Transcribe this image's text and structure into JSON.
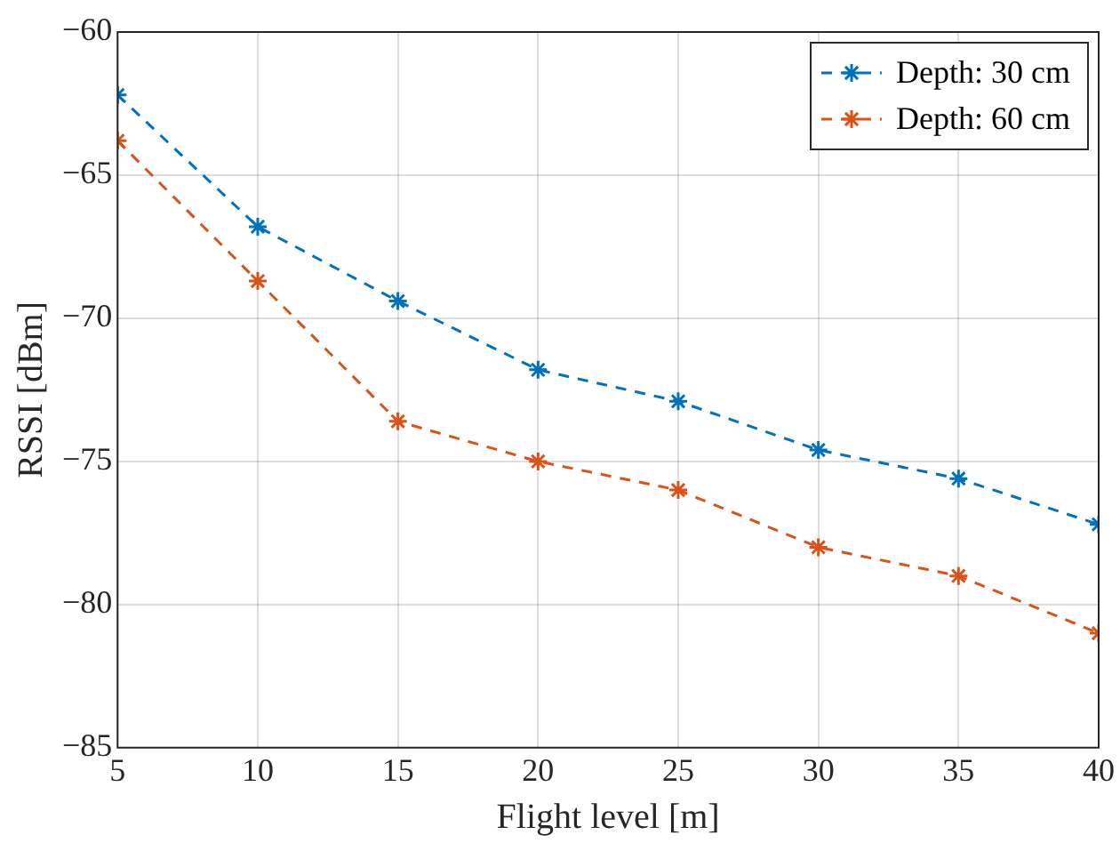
{
  "chart_data": {
    "type": "line",
    "xlabel": "Flight level [m]",
    "ylabel": "RSSI [dBm]",
    "x": [
      5,
      10,
      15,
      20,
      25,
      30,
      35,
      40
    ],
    "series": [
      {
        "name": "Depth: 30 cm",
        "color": "#0072bd",
        "values": [
          -62.2,
          -66.8,
          -69.4,
          -71.8,
          -72.9,
          -74.6,
          -75.6,
          -77.2
        ]
      },
      {
        "name": "Depth: 60 cm",
        "color": "#d95319",
        "values": [
          -63.8,
          -68.7,
          -73.6,
          -75.0,
          -76.0,
          -78.0,
          -79.0,
          -81.0
        ]
      }
    ],
    "xlim": [
      5,
      40
    ],
    "xticks": [
      5,
      10,
      15,
      20,
      25,
      30,
      35,
      40
    ],
    "ylim": [
      -85,
      -60
    ],
    "yticks": [
      -85,
      -80,
      -75,
      -70,
      -65,
      -60
    ],
    "grid": true,
    "legend": "top right",
    "marker": "cross",
    "line_style": "dashed"
  }
}
